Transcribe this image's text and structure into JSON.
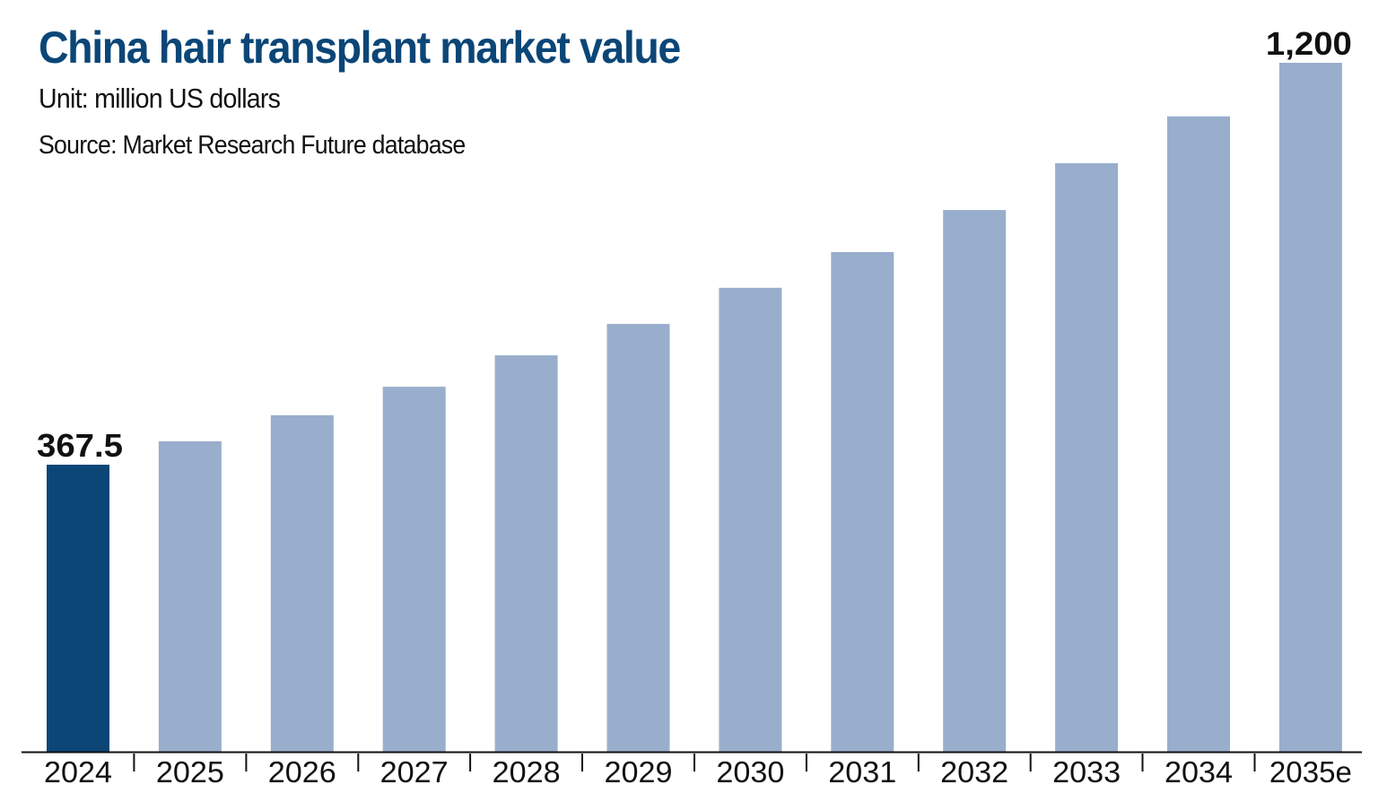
{
  "header": {
    "title": "China hair transplant market value",
    "unit": "Unit: million US dollars",
    "source": "Source: Market Research Future database"
  },
  "colors": {
    "highlight_bar": "#0b4677",
    "bar": "#99aecc",
    "title": "#0b4677",
    "axis": "#111111"
  },
  "chart_data": {
    "type": "bar",
    "title": "China hair transplant market value",
    "subtitle": "Unit: million US dollars",
    "note": "Source: Market Research Future database",
    "xlabel": "",
    "ylabel": "",
    "categories": [
      "2024",
      "2025",
      "2026",
      "2027",
      "2028",
      "2029",
      "2030",
      "2031",
      "2032",
      "2033",
      "2034",
      "2035e"
    ],
    "values": [
      367.5,
      416,
      470,
      529,
      594,
      659,
      734,
      808,
      895,
      992,
      1089,
      1200
    ],
    "highlight_index": 0,
    "data_labels": [
      {
        "index": 0,
        "text": "367.5"
      },
      {
        "index": 11,
        "text": "1,200"
      }
    ],
    "grid": false,
    "legend": "none"
  }
}
